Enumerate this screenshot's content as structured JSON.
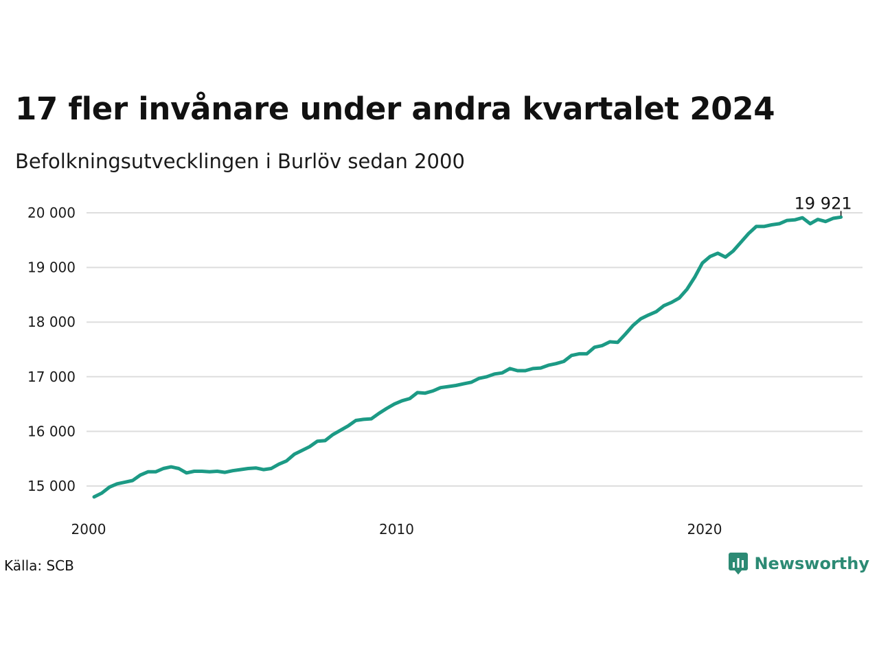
{
  "header": {
    "title": "17 fler invånare under andra kvartalet 2024",
    "subtitle": "Befolkningsutvecklingen i Burlöv sedan 2000"
  },
  "footer": {
    "source": "Källa: SCB",
    "brand": "Newsworthy"
  },
  "colors": {
    "line": "#1c9a85",
    "grid": "#dddddd",
    "brand": "#2c8a74"
  },
  "chart_data": {
    "type": "line",
    "title": "17 fler invånare under andra kvartalet 2024",
    "subtitle": "Befolkningsutvecklingen i Burlöv sedan 2000",
    "xlabel": "",
    "ylabel": "",
    "x_start": "2000-Q1",
    "x_ticks": [
      "2000",
      "2010",
      "2020"
    ],
    "y_ticks": [
      "15 000",
      "16 000",
      "17 000",
      "18 000",
      "19 000",
      "20 000"
    ],
    "ylim": [
      14500,
      20150
    ],
    "grid": true,
    "last_value_label": "19 921",
    "series": [
      {
        "values": [
          14800,
          14870,
          14980,
          15040,
          15070,
          15100,
          15200,
          15260,
          15260,
          15320,
          15350,
          15320,
          15240,
          15270,
          15270,
          15260,
          15270,
          15250,
          15280,
          15300,
          15320,
          15330,
          15300,
          15320,
          15400,
          15460,
          15580,
          15650,
          15720,
          15820,
          15830,
          15940,
          16020,
          16100,
          16200,
          16220,
          16230,
          16330,
          16420,
          16500,
          16560,
          16600,
          16710,
          16700,
          16740,
          16800,
          16820,
          16840,
          16870,
          16900,
          16970,
          17000,
          17050,
          17070,
          17150,
          17110,
          17110,
          17150,
          17160,
          17210,
          17240,
          17280,
          17390,
          17420,
          17420,
          17540,
          17570,
          17640,
          17630,
          17780,
          17940,
          18060,
          18130,
          18190,
          18300,
          18360,
          18440,
          18600,
          18820,
          19080,
          19200,
          19260,
          19190,
          19300,
          19460,
          19620,
          19750,
          19750,
          19780,
          19800,
          19860,
          19870,
          19910,
          19800,
          19880,
          19840,
          19900,
          19921
        ]
      }
    ]
  }
}
